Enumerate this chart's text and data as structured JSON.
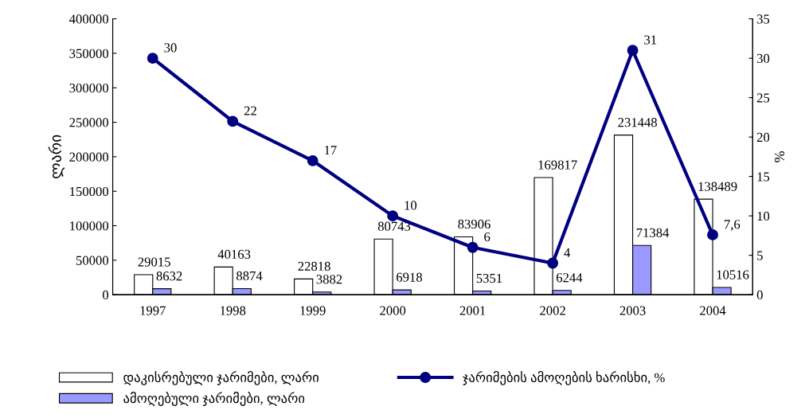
{
  "chart_data": {
    "type": "bar",
    "ylabel": "ლარი",
    "y2label": "%",
    "categories": [
      "1997",
      "1998",
      "1999",
      "2000",
      "2001",
      "2002",
      "2003",
      "2004"
    ],
    "series": [
      {
        "name": "დაკისრებული ჯარიმები, ლარი",
        "color": "#ffffff",
        "values": [
          29015,
          40163,
          22818,
          80743,
          83906,
          169817,
          231448,
          138489
        ],
        "value_labels": [
          "29015",
          "40163",
          "22818",
          "80743",
          "83906",
          "169817",
          "231448",
          "138489"
        ]
      },
      {
        "name": "ამოღებული ჯარიმები, ლარი",
        "color": "#9999ff",
        "values": [
          8632,
          8874,
          3882,
          6918,
          5351,
          6244,
          71384,
          10516
        ],
        "value_labels": [
          "8632",
          "8874",
          "3882",
          "6918",
          "5351",
          "6244",
          "71384",
          "10516"
        ]
      },
      {
        "name": "ჯარიმების ამოღების ხარისხი, %",
        "type": "line",
        "axis": "y2",
        "color": "#000080",
        "marker": "circle",
        "values": [
          30,
          22,
          17,
          10,
          6,
          4,
          31,
          7.6
        ],
        "value_labels": [
          "30",
          "22",
          "17",
          "10",
          "6",
          "4",
          "31",
          "7,6"
        ]
      }
    ],
    "ylim": [
      0,
      400000
    ],
    "yticks": [
      0,
      50000,
      100000,
      150000,
      200000,
      250000,
      300000,
      350000,
      400000
    ],
    "y2lim": [
      0,
      35
    ],
    "y2ticks": [
      0,
      5,
      10,
      15,
      20,
      25,
      30,
      35
    ],
    "grid": false,
    "legend": "bottom"
  }
}
